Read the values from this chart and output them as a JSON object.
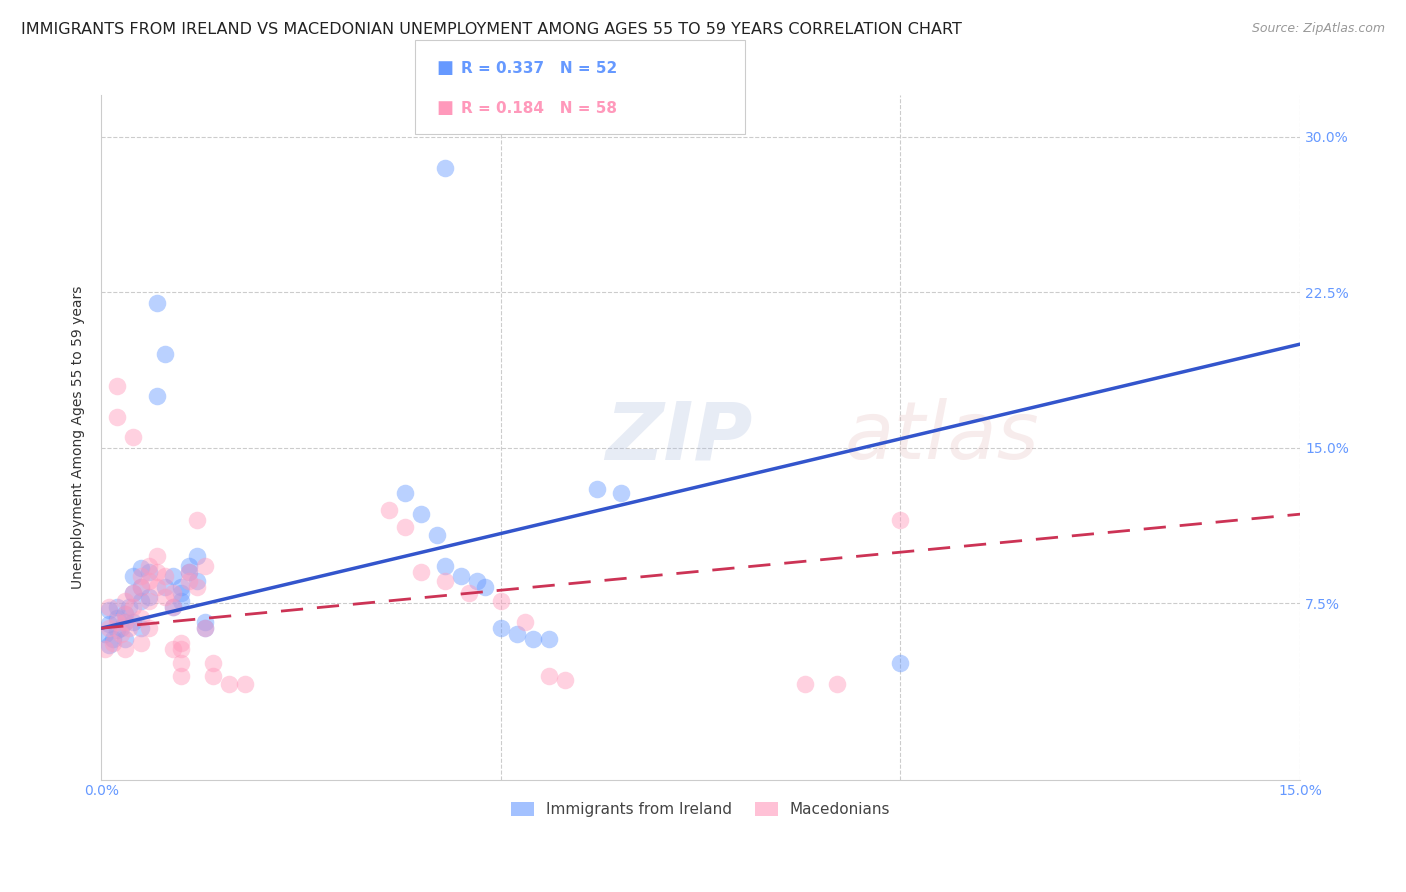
{
  "title": "IMMIGRANTS FROM IRELAND VS MACEDONIAN UNEMPLOYMENT AMONG AGES 55 TO 59 YEARS CORRELATION CHART",
  "source": "Source: ZipAtlas.com",
  "ylabel": "Unemployment Among Ages 55 to 59 years",
  "watermark": "ZIPatlas",
  "xlim": [
    0.0,
    0.15
  ],
  "ylim": [
    -0.01,
    0.32
  ],
  "xticks": [
    0.0,
    0.05,
    0.1,
    0.15
  ],
  "yticks": [
    0.075,
    0.15,
    0.225,
    0.3
  ],
  "ytick_labels": [
    "7.5%",
    "15.0%",
    "22.5%",
    "30.0%"
  ],
  "xtick_labels": [
    "0.0%",
    "",
    "",
    "15.0%"
  ],
  "blue_R": 0.337,
  "blue_N": 52,
  "pink_R": 0.184,
  "pink_N": 58,
  "blue_color": "#6699ff",
  "pink_color": "#ff99bb",
  "blue_scatter": [
    [
      0.0005,
      0.06
    ],
    [
      0.001,
      0.055
    ],
    [
      0.001,
      0.065
    ],
    [
      0.001,
      0.072
    ],
    [
      0.0015,
      0.058
    ],
    [
      0.002,
      0.068
    ],
    [
      0.002,
      0.073
    ],
    [
      0.002,
      0.062
    ],
    [
      0.0025,
      0.063
    ],
    [
      0.003,
      0.07
    ],
    [
      0.003,
      0.066
    ],
    [
      0.003,
      0.058
    ],
    [
      0.0035,
      0.073
    ],
    [
      0.004,
      0.066
    ],
    [
      0.004,
      0.088
    ],
    [
      0.004,
      0.08
    ],
    [
      0.005,
      0.092
    ],
    [
      0.005,
      0.083
    ],
    [
      0.005,
      0.076
    ],
    [
      0.005,
      0.063
    ],
    [
      0.006,
      0.09
    ],
    [
      0.006,
      0.078
    ],
    [
      0.007,
      0.22
    ],
    [
      0.007,
      0.175
    ],
    [
      0.008,
      0.195
    ],
    [
      0.008,
      0.083
    ],
    [
      0.009,
      0.073
    ],
    [
      0.009,
      0.088
    ],
    [
      0.01,
      0.08
    ],
    [
      0.01,
      0.076
    ],
    [
      0.01,
      0.083
    ],
    [
      0.011,
      0.09
    ],
    [
      0.011,
      0.093
    ],
    [
      0.012,
      0.086
    ],
    [
      0.012,
      0.098
    ],
    [
      0.013,
      0.063
    ],
    [
      0.013,
      0.066
    ],
    [
      0.038,
      0.128
    ],
    [
      0.04,
      0.118
    ],
    [
      0.042,
      0.108
    ],
    [
      0.043,
      0.093
    ],
    [
      0.045,
      0.088
    ],
    [
      0.047,
      0.086
    ],
    [
      0.048,
      0.083
    ],
    [
      0.05,
      0.063
    ],
    [
      0.052,
      0.06
    ],
    [
      0.054,
      0.058
    ],
    [
      0.056,
      0.058
    ],
    [
      0.062,
      0.13
    ],
    [
      0.065,
      0.128
    ],
    [
      0.1,
      0.046
    ],
    [
      0.043,
      0.285
    ]
  ],
  "pink_scatter": [
    [
      0.0005,
      0.053
    ],
    [
      0.001,
      0.063
    ],
    [
      0.001,
      0.073
    ],
    [
      0.0015,
      0.056
    ],
    [
      0.002,
      0.066
    ],
    [
      0.002,
      0.165
    ],
    [
      0.002,
      0.18
    ],
    [
      0.0025,
      0.06
    ],
    [
      0.003,
      0.07
    ],
    [
      0.003,
      0.076
    ],
    [
      0.003,
      0.066
    ],
    [
      0.003,
      0.053
    ],
    [
      0.0035,
      0.063
    ],
    [
      0.004,
      0.08
    ],
    [
      0.004,
      0.073
    ],
    [
      0.004,
      0.155
    ],
    [
      0.005,
      0.056
    ],
    [
      0.005,
      0.068
    ],
    [
      0.005,
      0.088
    ],
    [
      0.005,
      0.083
    ],
    [
      0.006,
      0.093
    ],
    [
      0.006,
      0.086
    ],
    [
      0.006,
      0.076
    ],
    [
      0.006,
      0.063
    ],
    [
      0.007,
      0.09
    ],
    [
      0.007,
      0.083
    ],
    [
      0.007,
      0.098
    ],
    [
      0.008,
      0.078
    ],
    [
      0.008,
      0.088
    ],
    [
      0.009,
      0.073
    ],
    [
      0.009,
      0.08
    ],
    [
      0.009,
      0.053
    ],
    [
      0.01,
      0.046
    ],
    [
      0.01,
      0.053
    ],
    [
      0.01,
      0.056
    ],
    [
      0.01,
      0.04
    ],
    [
      0.011,
      0.086
    ],
    [
      0.011,
      0.09
    ],
    [
      0.012,
      0.083
    ],
    [
      0.012,
      0.115
    ],
    [
      0.013,
      0.093
    ],
    [
      0.013,
      0.063
    ],
    [
      0.014,
      0.046
    ],
    [
      0.014,
      0.04
    ],
    [
      0.016,
      0.036
    ],
    [
      0.018,
      0.036
    ],
    [
      0.036,
      0.12
    ],
    [
      0.038,
      0.112
    ],
    [
      0.04,
      0.09
    ],
    [
      0.043,
      0.086
    ],
    [
      0.046,
      0.08
    ],
    [
      0.05,
      0.076
    ],
    [
      0.053,
      0.066
    ],
    [
      0.056,
      0.04
    ],
    [
      0.058,
      0.038
    ],
    [
      0.088,
      0.036
    ],
    [
      0.092,
      0.036
    ],
    [
      0.1,
      0.115
    ]
  ],
  "blue_trend": [
    0.0,
    0.063,
    0.15,
    0.2
  ],
  "pink_trend": [
    0.0,
    0.063,
    0.15,
    0.118
  ],
  "background_color": "#ffffff",
  "grid_color": "#cccccc",
  "title_fontsize": 11.5,
  "axis_label_fontsize": 10,
  "tick_fontsize": 10,
  "legend_label1": "Immigrants from Ireland",
  "legend_label2": "Macedonians"
}
